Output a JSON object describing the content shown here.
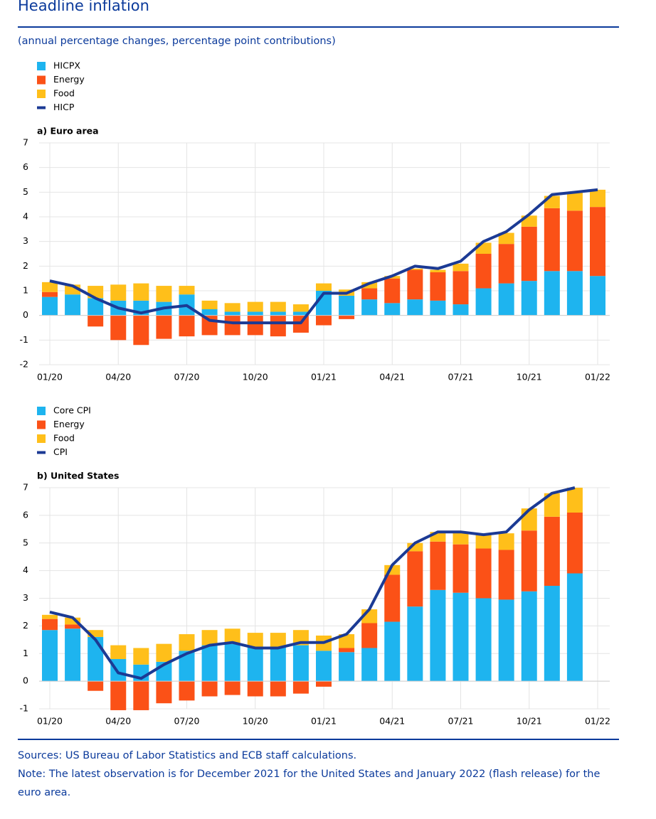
{
  "title": "Headline inflation",
  "subtitle": "(annual percentage changes, percentage point contributions)",
  "sources": "Sources: US Bureau of Labor Statistics and ECB staff calculations.",
  "note": "Note: The latest observation is for December 2021 for the United States and January 2022 (flash release) for the euro area.",
  "chart_data": [
    {
      "type": "stacked_bar_line",
      "title": "a) Euro area",
      "categories": [
        "01/20",
        null,
        null,
        "04/20",
        null,
        null,
        "07/20",
        null,
        null,
        "10/20",
        null,
        null,
        "01/21",
        null,
        null,
        "04/21",
        null,
        null,
        "07/21",
        null,
        null,
        "10/21",
        null,
        null,
        "01/22"
      ],
      "series": [
        {
          "name": "HICPX",
          "kind": "bar",
          "color": "#1eb4ef",
          "values": [
            0.75,
            0.85,
            0.7,
            0.6,
            0.6,
            0.55,
            0.85,
            0.25,
            0.15,
            0.15,
            0.15,
            0.15,
            1.0,
            0.8,
            0.65,
            0.5,
            0.65,
            0.6,
            0.45,
            1.1,
            1.3,
            1.4,
            1.8,
            1.8,
            1.6
          ]
        },
        {
          "name": "Energy",
          "kind": "bar",
          "color": "#fb5117",
          "values": [
            0.2,
            0.0,
            -0.45,
            -1.0,
            -1.2,
            -0.95,
            -0.85,
            -0.8,
            -0.8,
            -0.8,
            -0.85,
            -0.7,
            -0.4,
            -0.15,
            0.45,
            1.0,
            1.2,
            1.15,
            1.35,
            1.4,
            1.6,
            2.2,
            2.55,
            2.45,
            2.8
          ]
        },
        {
          "name": "Food",
          "kind": "bar",
          "color": "#ffbf1a",
          "values": [
            0.4,
            0.4,
            0.5,
            0.65,
            0.7,
            0.65,
            0.35,
            0.35,
            0.35,
            0.4,
            0.4,
            0.3,
            0.3,
            0.25,
            0.25,
            0.1,
            0.05,
            0.1,
            0.3,
            0.45,
            0.45,
            0.45,
            0.5,
            0.75,
            0.7
          ]
        },
        {
          "name": "HICP",
          "kind": "line",
          "color": "#1b3a94",
          "values": [
            1.4,
            1.2,
            0.7,
            0.3,
            0.1,
            0.3,
            0.4,
            -0.2,
            -0.3,
            -0.3,
            -0.3,
            -0.3,
            0.9,
            0.9,
            1.3,
            1.6,
            2.0,
            1.9,
            2.2,
            3.0,
            3.4,
            4.1,
            4.9,
            5.0,
            5.1
          ]
        }
      ],
      "ylim": [
        -2,
        7
      ],
      "yticks": [
        -2,
        -1,
        0,
        1,
        2,
        3,
        4,
        5,
        6,
        7
      ],
      "grid": true
    },
    {
      "type": "stacked_bar_line",
      "title": "b) United States",
      "categories": [
        "01/20",
        null,
        null,
        "04/20",
        null,
        null,
        "07/20",
        null,
        null,
        "10/20",
        null,
        null,
        "01/21",
        null,
        null,
        "04/21",
        null,
        null,
        "07/21",
        null,
        null,
        "10/21",
        null,
        null,
        "01/22"
      ],
      "series": [
        {
          "name": "Core CPI",
          "kind": "bar",
          "color": "#1eb4ef",
          "values": [
            1.85,
            1.9,
            1.6,
            0.8,
            0.6,
            0.7,
            1.1,
            1.3,
            1.35,
            1.25,
            1.25,
            1.3,
            1.1,
            1.05,
            1.2,
            2.15,
            2.7,
            3.3,
            3.2,
            3.0,
            2.95,
            3.25,
            3.45,
            3.9,
            null
          ]
        },
        {
          "name": "Energy",
          "kind": "bar",
          "color": "#fb5117",
          "values": [
            0.4,
            0.15,
            -0.35,
            -1.05,
            -1.05,
            -0.8,
            -0.7,
            -0.55,
            -0.5,
            -0.55,
            -0.55,
            -0.45,
            -0.2,
            0.15,
            0.9,
            1.7,
            2.0,
            1.75,
            1.75,
            1.8,
            1.8,
            2.2,
            2.5,
            2.2,
            null
          ]
        },
        {
          "name": "Food",
          "kind": "bar",
          "color": "#ffbf1a",
          "values": [
            0.15,
            0.25,
            0.25,
            0.5,
            0.6,
            0.65,
            0.6,
            0.55,
            0.55,
            0.5,
            0.5,
            0.55,
            0.55,
            0.5,
            0.5,
            0.35,
            0.3,
            0.35,
            0.45,
            0.5,
            0.6,
            0.8,
            0.85,
            0.9,
            null
          ]
        },
        {
          "name": "CPI",
          "kind": "line",
          "color": "#1b3a94",
          "values": [
            2.5,
            2.3,
            1.5,
            0.3,
            0.1,
            0.6,
            1.0,
            1.3,
            1.4,
            1.2,
            1.2,
            1.4,
            1.4,
            1.7,
            2.6,
            4.2,
            5.0,
            5.4,
            5.4,
            5.3,
            5.4,
            6.2,
            6.8,
            7.0,
            null
          ]
        }
      ],
      "ylim": [
        -1,
        7
      ],
      "yticks": [
        -1,
        0,
        1,
        2,
        3,
        4,
        5,
        6,
        7
      ],
      "grid": true
    }
  ]
}
